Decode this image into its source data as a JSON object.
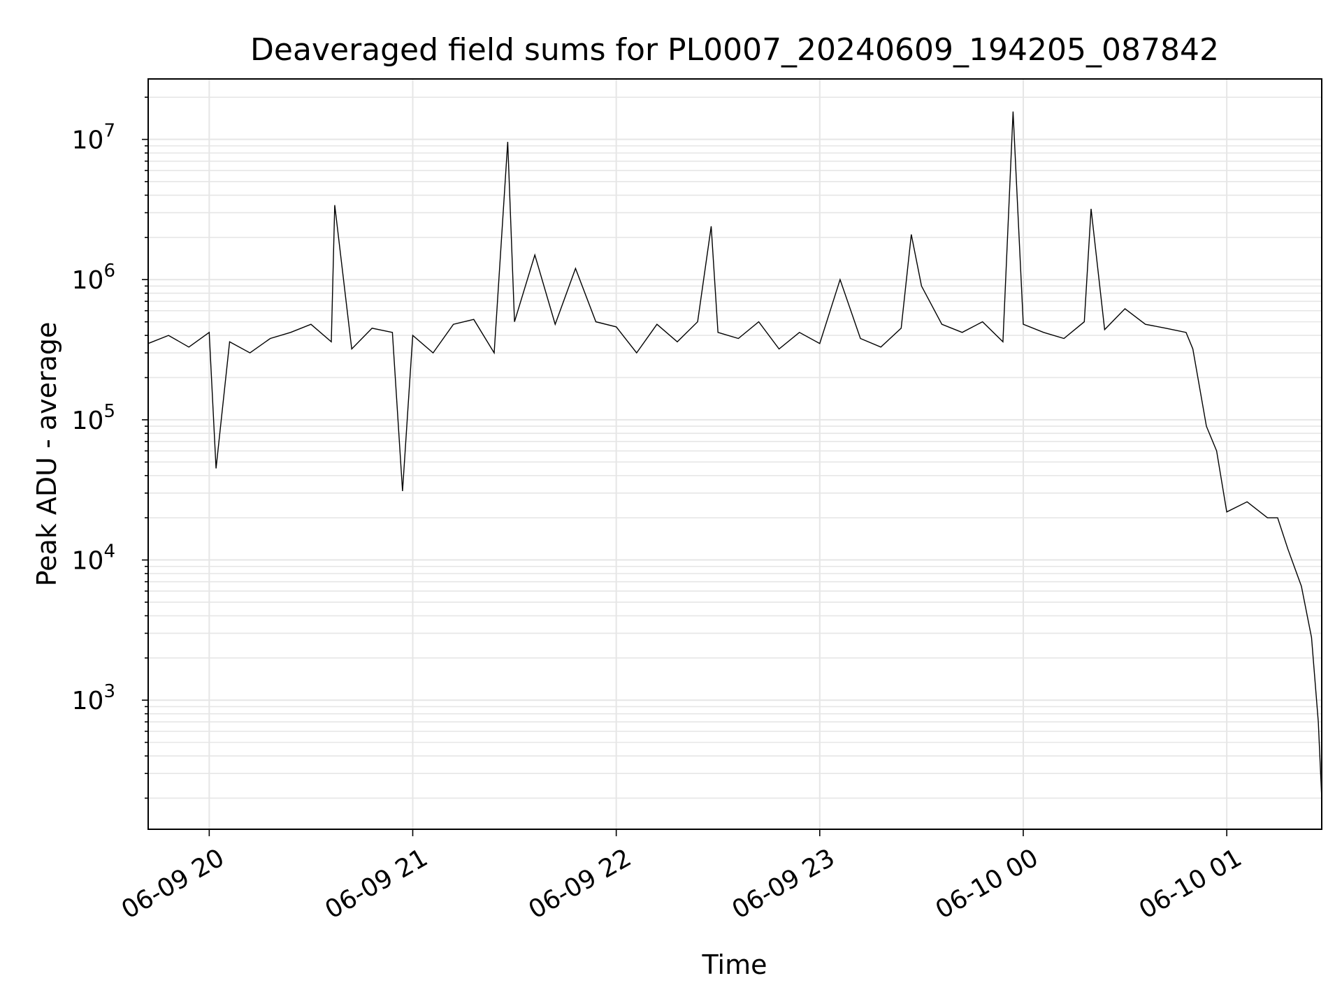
{
  "chart_data": {
    "type": "line",
    "title": "Deaveraged field sums for PL0007_20240609_194205_087842",
    "xlabel": "Time",
    "ylabel": "Peak ADU - average",
    "xscale": "time",
    "yscale": "log",
    "xlim": [
      "2024-06-09 19:42",
      "2024-06-10 01:28"
    ],
    "ylim": [
      120,
      27000000
    ],
    "grid": true,
    "line_color": "#000000",
    "grid_color": "#e6e6e6",
    "x_ticks": [
      {
        "t": "2024-06-09 20:00",
        "label": "06-09 20"
      },
      {
        "t": "2024-06-09 21:00",
        "label": "06-09 21"
      },
      {
        "t": "2024-06-09 22:00",
        "label": "06-09 22"
      },
      {
        "t": "2024-06-09 23:00",
        "label": "06-09 23"
      },
      {
        "t": "2024-06-10 00:00",
        "label": "06-10 00"
      },
      {
        "t": "2024-06-10 01:00",
        "label": "06-10 01"
      }
    ],
    "y_ticks": [
      {
        "value": 1000,
        "base": "10",
        "exp": "3"
      },
      {
        "value": 10000,
        "base": "10",
        "exp": "4"
      },
      {
        "value": 100000,
        "base": "10",
        "exp": "5"
      },
      {
        "value": 1000000,
        "base": "10",
        "exp": "6"
      },
      {
        "value": 10000000,
        "base": "10",
        "exp": "7"
      }
    ],
    "series": [
      {
        "x": [
          "2024-06-09 19:42",
          "2024-06-09 19:48",
          "2024-06-09 19:54",
          "2024-06-09 20:00",
          "2024-06-09 20:02",
          "2024-06-09 20:06",
          "2024-06-09 20:12",
          "2024-06-09 20:18",
          "2024-06-09 20:24",
          "2024-06-09 20:30",
          "2024-06-09 20:36",
          "2024-06-09 20:37",
          "2024-06-09 20:42",
          "2024-06-09 20:48",
          "2024-06-09 20:54",
          "2024-06-09 20:57",
          "2024-06-09 21:00",
          "2024-06-09 21:06",
          "2024-06-09 21:12",
          "2024-06-09 21:18",
          "2024-06-09 21:24",
          "2024-06-09 21:28",
          "2024-06-09 21:30",
          "2024-06-09 21:36",
          "2024-06-09 21:42",
          "2024-06-09 21:48",
          "2024-06-09 21:54",
          "2024-06-09 22:00",
          "2024-06-09 22:06",
          "2024-06-09 22:12",
          "2024-06-09 22:18",
          "2024-06-09 22:24",
          "2024-06-09 22:28",
          "2024-06-09 22:30",
          "2024-06-09 22:36",
          "2024-06-09 22:42",
          "2024-06-09 22:48",
          "2024-06-09 22:54",
          "2024-06-09 23:00",
          "2024-06-09 23:06",
          "2024-06-09 23:12",
          "2024-06-09 23:18",
          "2024-06-09 23:24",
          "2024-06-09 23:27",
          "2024-06-09 23:30",
          "2024-06-09 23:36",
          "2024-06-09 23:42",
          "2024-06-09 23:48",
          "2024-06-09 23:54",
          "2024-06-09 23:57",
          "2024-06-10 00:00",
          "2024-06-10 00:06",
          "2024-06-10 00:12",
          "2024-06-10 00:18",
          "2024-06-10 00:20",
          "2024-06-10 00:24",
          "2024-06-10 00:30",
          "2024-06-10 00:36",
          "2024-06-10 00:42",
          "2024-06-10 00:48",
          "2024-06-10 00:50",
          "2024-06-10 00:54",
          "2024-06-10 00:57",
          "2024-06-10 01:00",
          "2024-06-10 01:06",
          "2024-06-10 01:12",
          "2024-06-10 01:15",
          "2024-06-10 01:18",
          "2024-06-10 01:22",
          "2024-06-10 01:25",
          "2024-06-10 01:27",
          "2024-06-10 01:28"
        ],
        "y": [
          350000,
          400000,
          330000,
          420000,
          45000,
          360000,
          300000,
          380000,
          420000,
          480000,
          360000,
          3400000,
          320000,
          450000,
          420000,
          31000,
          400000,
          300000,
          480000,
          520000,
          300000,
          9600000,
          500000,
          1500000,
          480000,
          1200000,
          500000,
          460000,
          300000,
          480000,
          360000,
          500000,
          2400000,
          420000,
          380000,
          500000,
          320000,
          420000,
          350000,
          1000000,
          380000,
          330000,
          450000,
          2100000,
          900000,
          480000,
          420000,
          500000,
          360000,
          15800000,
          480000,
          420000,
          380000,
          500000,
          3200000,
          440000,
          620000,
          480000,
          450000,
          420000,
          320000,
          90000,
          60000,
          22000,
          26000,
          20000,
          20000,
          12000,
          6500,
          2800,
          700,
          200
        ]
      }
    ]
  }
}
